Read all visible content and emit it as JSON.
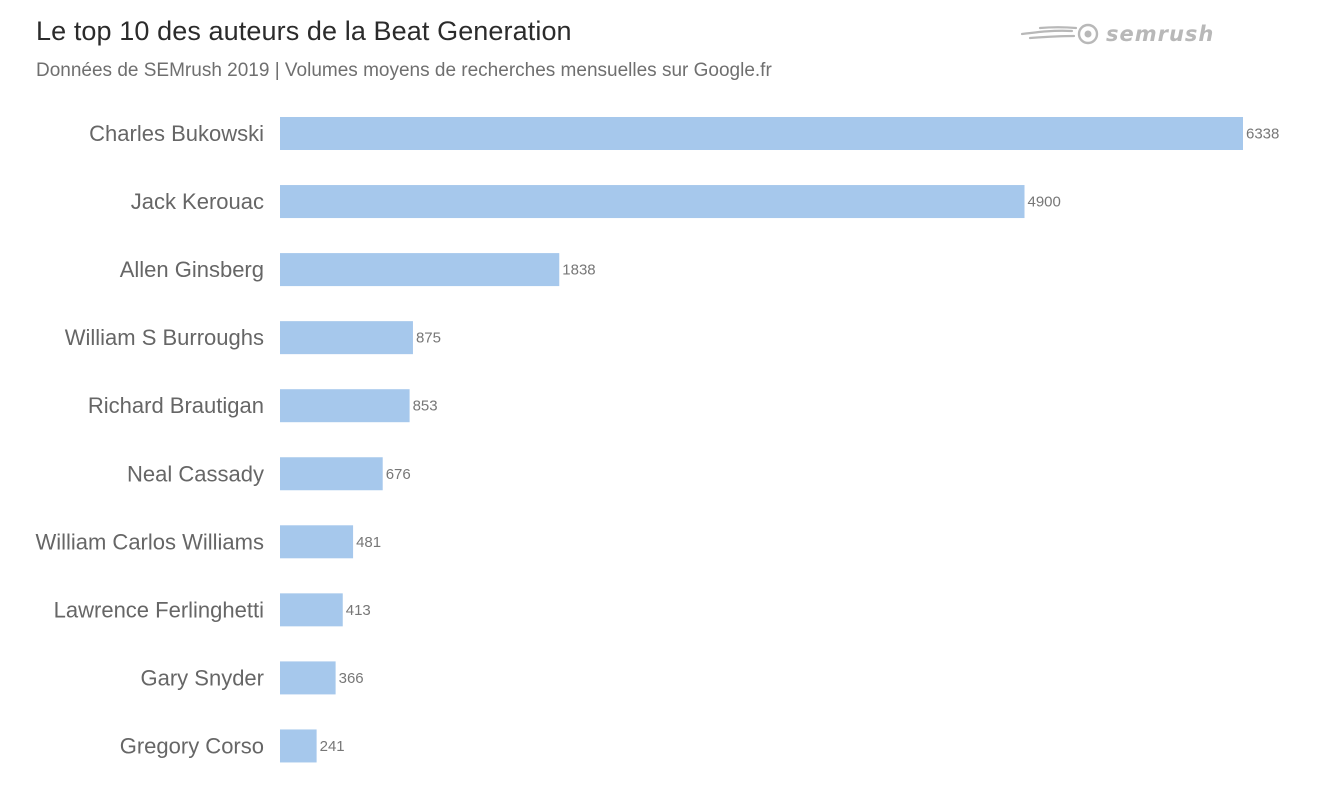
{
  "header": {
    "title": "Le top 10 des auteurs de la Beat Generation",
    "subtitle": "Données de SEMrush 2019 | Volumes moyens de recherches mensuelles sur Google.fr"
  },
  "logo": {
    "text": "SEMrush",
    "icon": "semrush-fireball-icon",
    "color": "#b8b8b8"
  },
  "chart_data": {
    "type": "bar",
    "orientation": "horizontal",
    "title": "Le top 10 des auteurs de la Beat Generation",
    "subtitle": "Données de SEMrush 2019 | Volumes moyens de recherches mensuelles sur Google.fr",
    "categories": [
      "Charles Bukowski",
      "Jack Kerouac",
      "Allen Ginsberg",
      "William S Burroughs",
      "Richard Brautigan",
      "Neal Cassady",
      "William Carlos Williams",
      "Lawrence Ferlinghetti",
      "Gary Snyder",
      "Gregory Corso"
    ],
    "values": [
      6338,
      4900,
      1838,
      875,
      853,
      676,
      481,
      413,
      366,
      241
    ],
    "bar_color": "#a6c8ec",
    "grid": false,
    "xlim": [
      0,
      6338
    ],
    "xlabel": "",
    "ylabel": ""
  }
}
